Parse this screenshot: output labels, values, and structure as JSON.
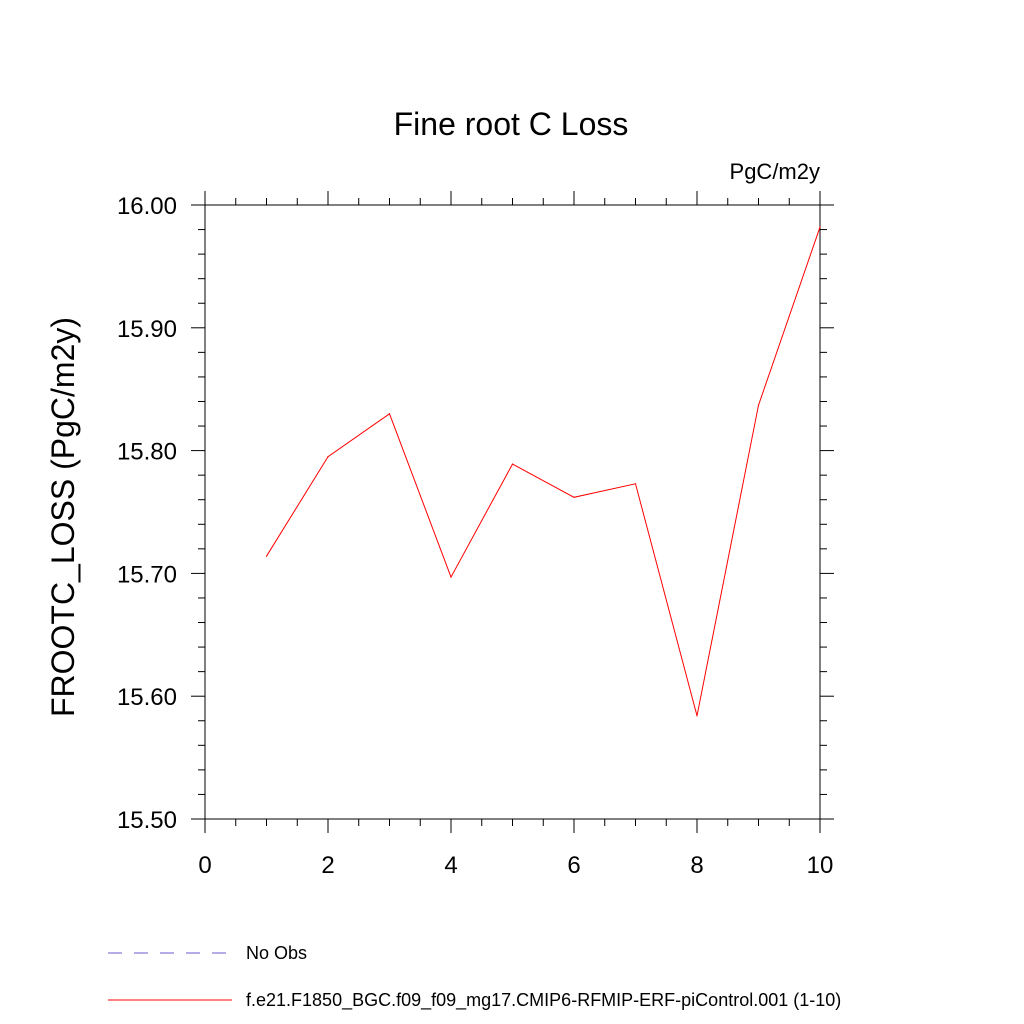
{
  "chart_data": {
    "type": "line",
    "title": "Fine root C Loss",
    "units_label": "PgC/m2y",
    "ylabel": "FROOTC_LOSS  (PgC/m2y)",
    "xlabel": "",
    "xlim": [
      0,
      10
    ],
    "ylim": [
      15.5,
      16.0
    ],
    "x_ticks": [
      0,
      2,
      4,
      6,
      8,
      10
    ],
    "x_tick_labels": [
      "0",
      "2",
      "4",
      "6",
      "8",
      "10"
    ],
    "y_ticks": [
      15.5,
      15.6,
      15.7,
      15.8,
      15.9,
      16.0
    ],
    "y_tick_labels": [
      "15.50",
      "15.60",
      "15.70",
      "15.80",
      "15.90",
      "16.00"
    ],
    "grid": false,
    "legend_position": "bottom-left",
    "series": [
      {
        "name": "f.e21.F1850_BGC.f09_f09_mg17.CMIP6-RFMIP-ERF-piControl.001 (1-10)",
        "color": "#ff0000",
        "style": "solid",
        "x": [
          1,
          2,
          3,
          4,
          5,
          6,
          7,
          8,
          9,
          10
        ],
        "y": [
          15.714,
          15.795,
          15.83,
          15.697,
          15.789,
          15.762,
          15.773,
          15.584,
          15.837,
          15.982
        ]
      }
    ],
    "legend": [
      {
        "label": "No Obs",
        "color": "#6a5acd",
        "style": "dashed"
      },
      {
        "label": "f.e21.F1850_BGC.f09_f09_mg17.CMIP6-RFMIP-ERF-piControl.001 (1-10)",
        "color": "#ff0000",
        "style": "solid"
      }
    ]
  }
}
